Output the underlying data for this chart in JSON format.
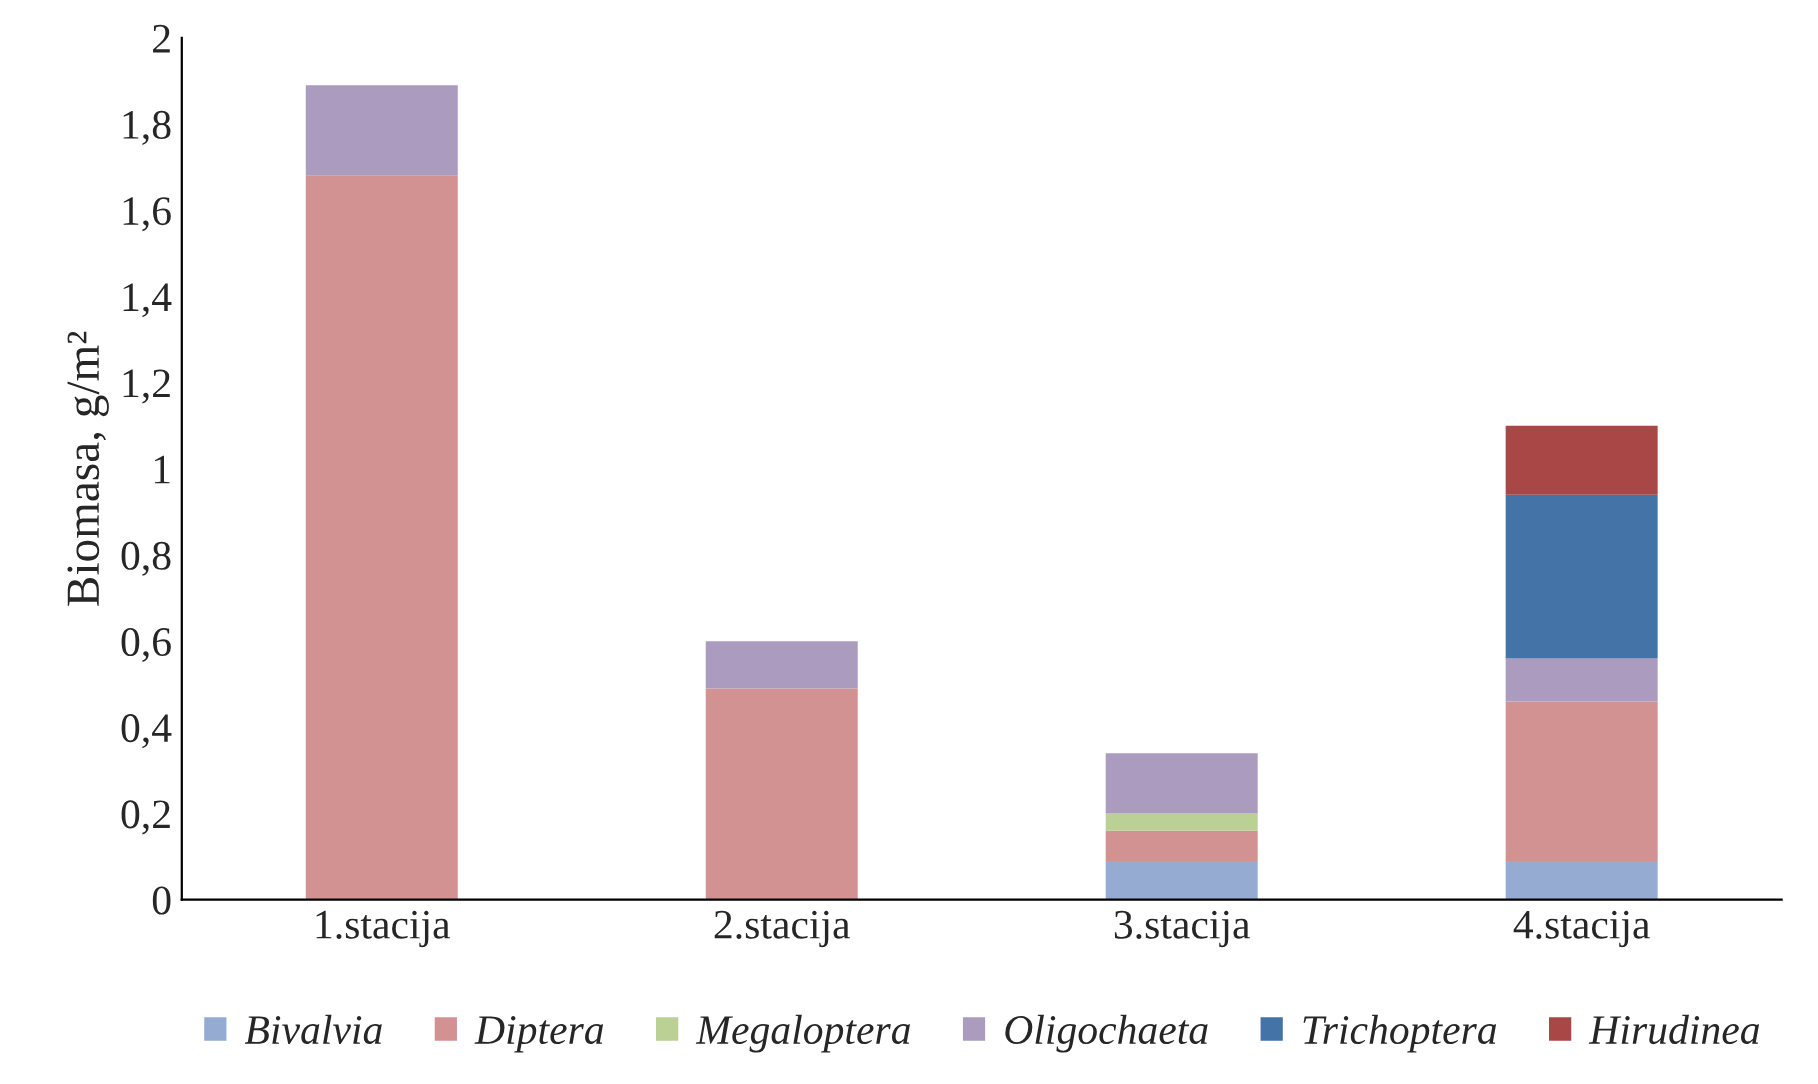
{
  "chart_data": {
    "type": "bar",
    "stacked": true,
    "ylabel": "Biomasa, g/m²",
    "categories": [
      "1.stacija",
      "2.stacija",
      "3.stacija",
      "4.stacija"
    ],
    "series": [
      {
        "name": "Bivalvia",
        "color": "#95abd2",
        "values": [
          null,
          null,
          0.09,
          0.09
        ]
      },
      {
        "name": "Diptera",
        "color": "#d39292",
        "values": [
          1.68,
          0.49,
          0.07,
          0.37
        ]
      },
      {
        "name": "Megaloptera",
        "color": "#bad094",
        "values": [
          null,
          null,
          0.04,
          null
        ]
      },
      {
        "name": "Oligochaeta",
        "color": "#ab9bbf",
        "values": [
          0.21,
          0.11,
          0.14,
          0.1
        ]
      },
      {
        "name": "Trichoptera",
        "color": "#4473a7",
        "values": [
          null,
          null,
          null,
          0.38
        ]
      },
      {
        "name": "Hirudinea",
        "color": "#a94747",
        "values": [
          null,
          null,
          null,
          0.16
        ]
      }
    ],
    "ylim": [
      0,
      2
    ],
    "yticks": [
      0,
      {
        "value": 0.2,
        "label": "0,2"
      },
      {
        "value": 0.4,
        "label": "0,4"
      },
      {
        "value": 0.6,
        "label": "0,6"
      },
      {
        "value": 0.8,
        "label": "0,8"
      },
      1,
      {
        "value": 1.2,
        "label": "1,2"
      },
      {
        "value": 1.4,
        "label": "1,4"
      },
      {
        "value": 1.6,
        "label": "1,6"
      },
      {
        "value": 1.8,
        "label": "1,8"
      },
      2
    ],
    "grid": false,
    "legend": "bottom"
  }
}
